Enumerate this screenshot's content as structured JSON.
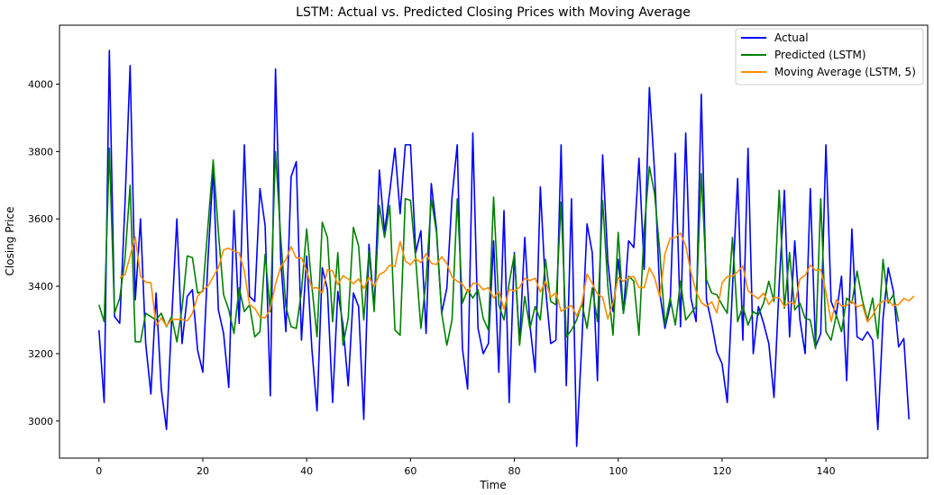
{
  "chart_data": {
    "type": "line",
    "title": "LSTM: Actual vs. Predicted Closing Prices with Moving Average",
    "xlabel": "Time",
    "ylabel": "Closing Price",
    "xlim": [
      -7.6,
      159.6
    ],
    "ylim": [
      2890,
      4175
    ],
    "xticks": [
      0,
      20,
      40,
      60,
      80,
      100,
      120,
      140
    ],
    "yticks": [
      3000,
      3200,
      3400,
      3600,
      3800,
      4000
    ],
    "grid": false,
    "legend_position": "top-right",
    "series": [
      {
        "name": "Actual",
        "color": "#0000ff",
        "x_start": 0,
        "values": [
          3270,
          3055,
          4100,
          3310,
          3290,
          3640,
          4055,
          3360,
          3600,
          3230,
          3080,
          3380,
          3095,
          2975,
          3300,
          3600,
          3230,
          3370,
          3390,
          3210,
          3145,
          3480,
          3750,
          3330,
          3260,
          3100,
          3625,
          3290,
          3820,
          3370,
          3355,
          3690,
          3580,
          3075,
          4045,
          3480,
          3265,
          3725,
          3770,
          3240,
          3490,
          3215,
          3030,
          3455,
          3390,
          3055,
          3385,
          3285,
          3105,
          3380,
          3340,
          3005,
          3525,
          3335,
          3745,
          3560,
          3680,
          3810,
          3615,
          3820,
          3820,
          3500,
          3565,
          3260,
          3705,
          3570,
          3320,
          3395,
          3665,
          3820,
          3215,
          3095,
          3855,
          3275,
          3200,
          3230,
          3535,
          3145,
          3625,
          3055,
          3500,
          3230,
          3545,
          3285,
          3145,
          3695,
          3395,
          3230,
          3240,
          3820,
          3105,
          3660,
          2925,
          3235,
          3585,
          3500,
          3120,
          3790,
          3475,
          3325,
          3480,
          3320,
          3535,
          3515,
          3780,
          3450,
          3990,
          3740,
          3380,
          3275,
          3345,
          3795,
          3280,
          3855,
          3365,
          3295,
          3970,
          3360,
          3290,
          3205,
          3170,
          3055,
          3395,
          3720,
          3240,
          3810,
          3200,
          3340,
          3290,
          3230,
          3070,
          3405,
          3685,
          3250,
          3535,
          3300,
          3200,
          3690,
          3220,
          3260,
          3820,
          3355,
          3315,
          3430,
          3120,
          3570,
          3250,
          3240,
          3265,
          3240,
          2975,
          3305,
          3455,
          3385,
          3220,
          3245,
          3005
        ]
      },
      {
        "name": "Predicted (LSTM)",
        "color": "#008000",
        "x_start": 0,
        "values": [
          3345,
          3295,
          3810,
          3320,
          3365,
          3480,
          3700,
          3235,
          3235,
          3320,
          3310,
          3300,
          3320,
          3280,
          3310,
          3235,
          3335,
          3490,
          3485,
          3380,
          3385,
          3580,
          3775,
          3560,
          3375,
          3330,
          3260,
          3395,
          3325,
          3345,
          3250,
          3265,
          3495,
          3325,
          3800,
          3545,
          3340,
          3280,
          3275,
          3385,
          3570,
          3400,
          3250,
          3590,
          3545,
          3295,
          3500,
          3225,
          3305,
          3575,
          3520,
          3300,
          3505,
          3325,
          3640,
          3545,
          3640,
          3270,
          3255,
          3660,
          3655,
          3480,
          3275,
          3420,
          3660,
          3560,
          3320,
          3225,
          3300,
          3660,
          3350,
          3390,
          3365,
          3390,
          3305,
          3270,
          3665,
          3345,
          3300,
          3410,
          3495,
          3225,
          3370,
          3275,
          3340,
          3300,
          3480,
          3355,
          3345,
          3650,
          3250,
          3270,
          3300,
          3350,
          3275,
          3395,
          3295,
          3655,
          3400,
          3255,
          3560,
          3320,
          3430,
          3415,
          3255,
          3570,
          3755,
          3675,
          3505,
          3285,
          3365,
          3285,
          3415,
          3300,
          3320,
          3340,
          3735,
          3420,
          3380,
          3375,
          3345,
          3320,
          3545,
          3295,
          3340,
          3285,
          3325,
          3315,
          3350,
          3415,
          3355,
          3685,
          3335,
          3500,
          3330,
          3350,
          3305,
          3300,
          3215,
          3660,
          3265,
          3240,
          3315,
          3265,
          3365,
          3350,
          3445,
          3360,
          3300,
          3365,
          3245,
          3480,
          3350,
          3375,
          3295
        ]
      },
      {
        "name": "Moving Average (LSTM, 5)",
        "color": "#ff8c00",
        "x_start": 4,
        "values": [
          3425,
          3434,
          3490,
          3547,
          3430,
          3412,
          3411,
          3283,
          3306,
          3282,
          3301,
          3302,
          3302,
          3297,
          3320,
          3370,
          3389,
          3401,
          3428,
          3455,
          3508,
          3513,
          3504,
          3499,
          3445,
          3345,
          3335,
          3309,
          3306,
          3333,
          3407,
          3458,
          3479,
          3518,
          3484,
          3484,
          3447,
          3394,
          3396,
          3380,
          3449,
          3446,
          3405,
          3431,
          3422,
          3408,
          3422,
          3393,
          3427,
          3399,
          3435,
          3443,
          3463,
          3459,
          3533,
          3475,
          3464,
          3482,
          3470,
          3497,
          3468,
          3465,
          3488,
          3467,
          3427,
          3415,
          3406,
          3383,
          3409,
          3407,
          3390,
          3396,
          3365,
          3385,
          3332,
          3391,
          3386,
          3397,
          3424,
          3417,
          3424,
          3383,
          3415,
          3368,
          3381,
          3326,
          3335,
          3343,
          3312,
          3349,
          3436,
          3409,
          3377,
          3367,
          3303,
          3350,
          3426,
          3415,
          3426,
          3429,
          3396,
          3396,
          3455,
          3426,
          3368,
          3496,
          3542,
          3545,
          3558,
          3520,
          3442,
          3384,
          3352,
          3340,
          3354,
          3321,
          3410,
          3429,
          3430,
          3443,
          3460,
          3387,
          3373,
          3363,
          3380,
          3346,
          3367,
          3366,
          3340,
          3354,
          3346,
          3422,
          3432,
          3463,
          3447,
          3450,
          3384,
          3295,
          3360,
          3342,
          3343,
          3356,
          3339,
          3345,
          3294,
          3313,
          3344,
          3356,
          3358,
          3342,
          3346,
          3364,
          3357,
          3371
        ]
      }
    ]
  }
}
